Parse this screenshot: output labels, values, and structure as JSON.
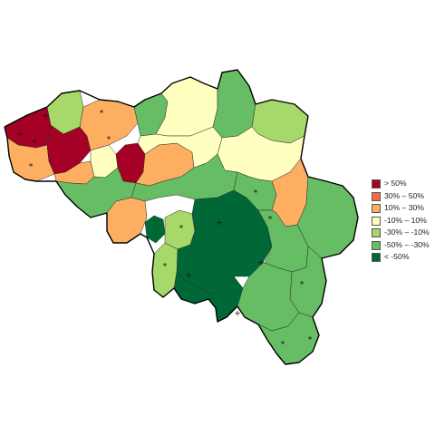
{
  "legend": {
    "classes": [
      {
        "label": "> 50%",
        "color": "#a50026"
      },
      {
        "label": "30%  –  50%",
        "color": "#f46d43"
      },
      {
        "label": "10%  –  30%",
        "color": "#fdae61"
      },
      {
        "label": "-10%  –  10%",
        "color": "#ffffbf"
      },
      {
        "label": "-30%  – -10%",
        "color": "#a6d96a"
      },
      {
        "label": "-50%  – -30%",
        "color": "#66bd63"
      },
      {
        "label": "< -50%",
        "color": "#006837"
      }
    ]
  },
  "symbols": {
    "plus": "+",
    "asterisk": "*"
  }
}
